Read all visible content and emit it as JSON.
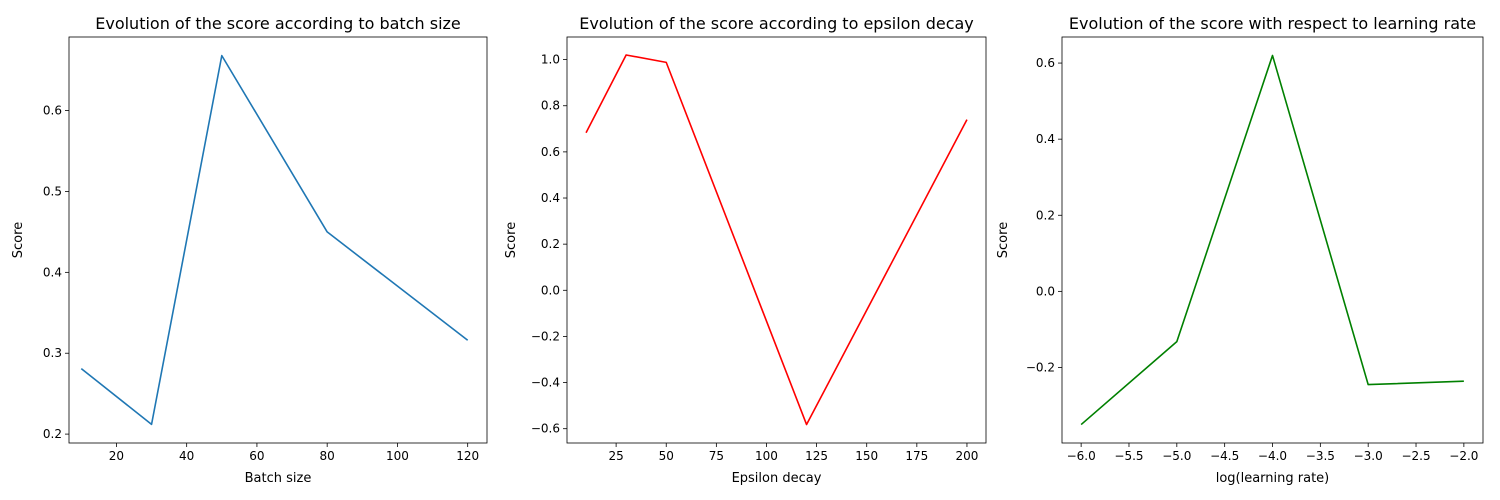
{
  "chart_data": [
    {
      "type": "line",
      "title": "Evolution of the score according to batch size",
      "xlabel": "Batch size",
      "ylabel": "Score",
      "x": [
        10,
        30,
        50,
        80,
        120
      ],
      "series": [
        {
          "values": [
            0.281,
            0.212,
            0.668,
            0.45,
            0.316
          ]
        }
      ],
      "xlim": [
        6.5,
        125.5
      ],
      "ylim": [
        0.189,
        0.691
      ],
      "xticks": [
        20,
        40,
        60,
        80,
        100,
        120
      ],
      "xtick_labels": [
        "20",
        "40",
        "60",
        "80",
        "100",
        "120"
      ],
      "yticks": [
        0.2,
        0.3,
        0.4,
        0.5,
        0.6
      ],
      "ytick_labels": [
        "0.2",
        "0.3",
        "0.4",
        "0.5",
        "0.6"
      ],
      "color": "#1f77b4",
      "grid": false
    },
    {
      "type": "line",
      "title": "Evolution of the score according to epsilon decay",
      "xlabel": "Epsilon decay",
      "ylabel": "Score",
      "x": [
        10,
        30,
        50,
        120,
        200
      ],
      "series": [
        {
          "values": [
            0.683,
            1.02,
            0.988,
            -0.582,
            0.74
          ]
        }
      ],
      "xlim": [
        0.5,
        209.5
      ],
      "ylim": [
        -0.662,
        1.098
      ],
      "xticks": [
        25,
        50,
        75,
        100,
        125,
        150,
        175,
        200
      ],
      "xtick_labels": [
        "25",
        "50",
        "75",
        "100",
        "125",
        "150",
        "175",
        "200"
      ],
      "yticks": [
        -0.6,
        -0.4,
        -0.2,
        0.0,
        0.2,
        0.4,
        0.6,
        0.8,
        1.0
      ],
      "ytick_labels": [
        "−0.6",
        "−0.4",
        "−0.2",
        "0.0",
        "0.2",
        "0.4",
        "0.6",
        "0.8",
        "1.0"
      ],
      "color": "#ff0000",
      "grid": false
    },
    {
      "type": "line",
      "title": "Evolution of the score with respect to learning rate",
      "xlabel": "log(learning rate)",
      "ylabel": "Score",
      "x": [
        -6,
        -5,
        -4,
        -3,
        -2
      ],
      "series": [
        {
          "values": [
            -0.35,
            -0.132,
            0.62,
            -0.245,
            -0.236
          ]
        }
      ],
      "xlim": [
        -6.2,
        -1.8
      ],
      "ylim": [
        -0.3985,
        0.6685
      ],
      "xticks": [
        -6.0,
        -5.5,
        -5.0,
        -4.5,
        -4.0,
        -3.5,
        -3.0,
        -2.5,
        -2.0
      ],
      "xtick_labels": [
        "−6.0",
        "−5.5",
        "−5.0",
        "−4.5",
        "−4.0",
        "−3.5",
        "−3.0",
        "−2.5",
        "−2.0"
      ],
      "yticks": [
        -0.2,
        0.0,
        0.2,
        0.4,
        0.6
      ],
      "ytick_labels": [
        "−0.2",
        "0.0",
        "0.2",
        "0.4",
        "0.6"
      ],
      "color": "#008000",
      "grid": false
    }
  ]
}
